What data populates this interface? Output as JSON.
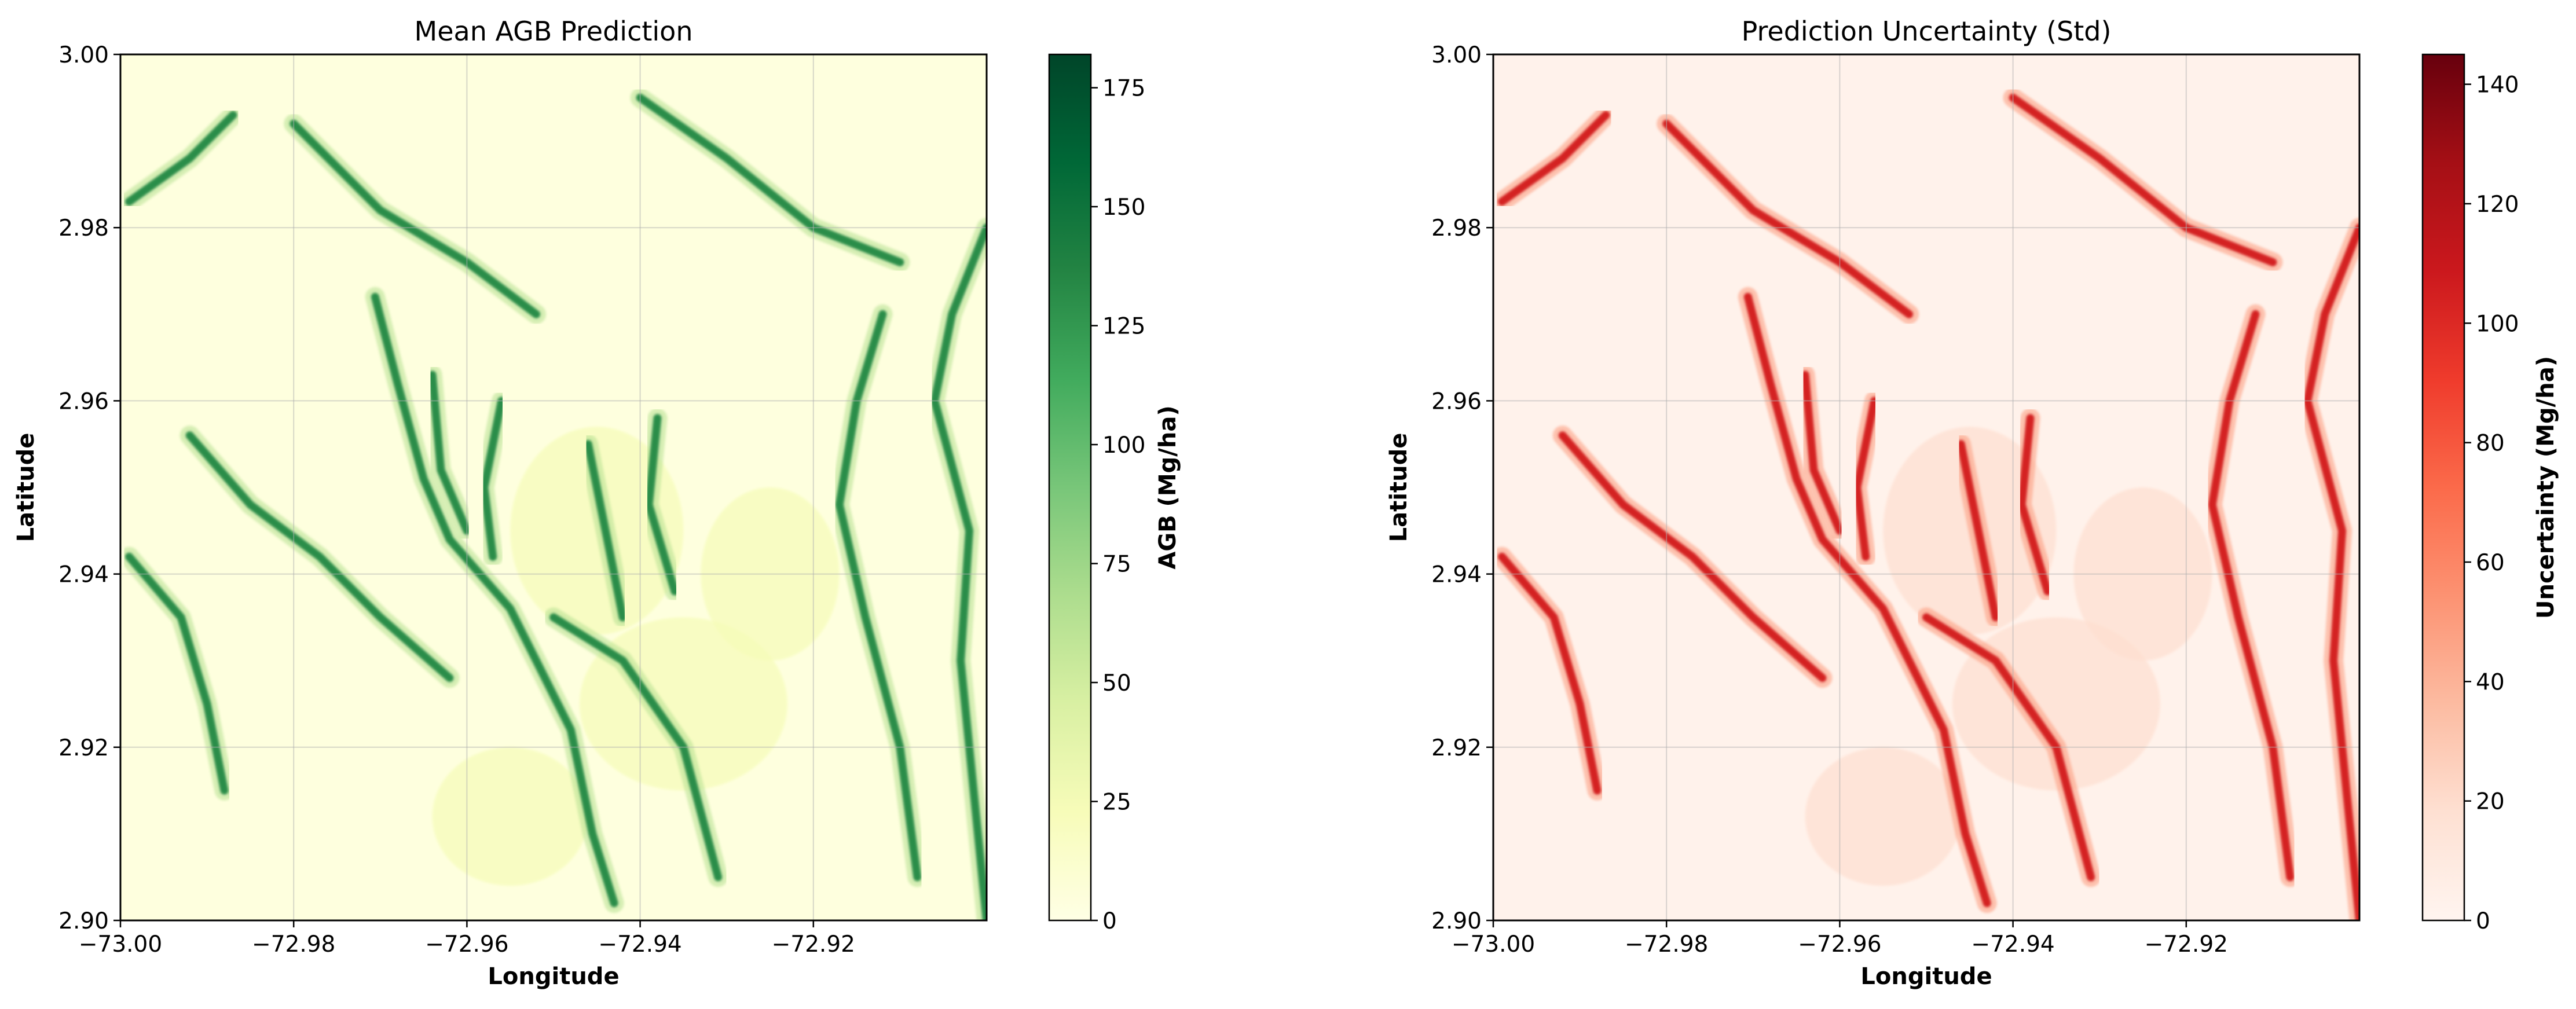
{
  "chart_data": [
    {
      "type": "heatmap",
      "title": "Mean AGB Prediction",
      "xlabel": "Longitude",
      "ylabel": "Latitude",
      "xlim": [
        -73.0,
        -72.9
      ],
      "ylim": [
        2.9,
        3.0
      ],
      "x_ticks": [
        -73.0,
        -72.98,
        -72.96,
        -72.94,
        -72.92
      ],
      "x_tick_labels": [
        "−73.00",
        "−72.98",
        "−72.96",
        "−72.94",
        "−72.92"
      ],
      "y_ticks": [
        2.9,
        2.92,
        2.94,
        2.96,
        2.98,
        3.0
      ],
      "y_tick_labels": [
        "2.90",
        "2.92",
        "2.94",
        "2.96",
        "2.98",
        "3.00"
      ],
      "grid": true,
      "colormap": "Greens",
      "colormap_colors": [
        "#ffffe5",
        "#f7fcb9",
        "#d9f0a3",
        "#addd8e",
        "#78c679",
        "#41ab5d",
        "#238443",
        "#006837",
        "#004529"
      ],
      "colorbar": {
        "label": "AGB (Mg/ha)",
        "range": [
          0,
          182
        ],
        "ticks": [
          0,
          25,
          50,
          75,
          100,
          125,
          150,
          175
        ],
        "tick_labels": [
          "0",
          "25",
          "50",
          "75",
          "100",
          "125",
          "150",
          "175"
        ]
      },
      "data_description_paths": [
        [
          [
            -72.9706,
            2.972
          ],
          [
            -72.968,
            2.962
          ],
          [
            -72.965,
            2.951
          ],
          [
            -72.962,
            2.944
          ],
          [
            -72.955,
            2.936
          ],
          [
            -72.948,
            2.922
          ],
          [
            -72.9455,
            2.91
          ],
          [
            -72.943,
            2.902
          ]
        ],
        [
          [
            -72.964,
            2.963
          ],
          [
            -72.963,
            2.952
          ],
          [
            -72.96,
            2.945
          ]
        ],
        [
          [
            -72.956,
            2.96
          ],
          [
            -72.958,
            2.95
          ],
          [
            -72.957,
            2.942
          ]
        ],
        [
          [
            -72.992,
            2.956
          ],
          [
            -72.985,
            2.948
          ],
          [
            -72.977,
            2.942
          ],
          [
            -72.97,
            2.935
          ],
          [
            -72.962,
            2.928
          ]
        ],
        [
          [
            -72.95,
            2.935
          ],
          [
            -72.942,
            2.93
          ],
          [
            -72.935,
            2.92
          ],
          [
            -72.931,
            2.905
          ]
        ],
        [
          [
            -72.946,
            2.955
          ],
          [
            -72.944,
            2.945
          ],
          [
            -72.942,
            2.935
          ]
        ],
        [
          [
            -72.938,
            2.958
          ],
          [
            -72.939,
            2.948
          ],
          [
            -72.936,
            2.938
          ]
        ],
        [
          [
            -72.912,
            2.97
          ],
          [
            -72.915,
            2.96
          ],
          [
            -72.917,
            2.948
          ],
          [
            -72.914,
            2.935
          ],
          [
            -72.91,
            2.92
          ],
          [
            -72.908,
            2.905
          ]
        ],
        [
          [
            -72.9,
            2.98
          ],
          [
            -72.904,
            2.97
          ],
          [
            -72.906,
            2.96
          ],
          [
            -72.902,
            2.945
          ],
          [
            -72.903,
            2.93
          ],
          [
            -72.901,
            2.91
          ],
          [
            -72.9,
            2.9
          ]
        ],
        [
          [
            -72.999,
            2.942
          ],
          [
            -72.993,
            2.935
          ],
          [
            -72.99,
            2.925
          ],
          [
            -72.988,
            2.915
          ]
        ],
        [
          [
            -72.98,
            2.992
          ],
          [
            -72.97,
            2.982
          ],
          [
            -72.96,
            2.976
          ],
          [
            -72.952,
            2.97
          ]
        ],
        [
          [
            -72.94,
            2.995
          ],
          [
            -72.93,
            2.988
          ],
          [
            -72.92,
            2.98
          ],
          [
            -72.91,
            2.976
          ]
        ],
        [
          [
            -72.999,
            2.983
          ],
          [
            -72.992,
            2.988
          ],
          [
            -72.987,
            2.993
          ]
        ]
      ]
    },
    {
      "type": "heatmap",
      "title": "Prediction Uncertainty (Std)",
      "xlabel": "Longitude",
      "ylabel": "Latitude",
      "xlim": [
        -73.0,
        -72.9
      ],
      "ylim": [
        2.9,
        3.0
      ],
      "x_ticks": [
        -73.0,
        -72.98,
        -72.96,
        -72.94,
        -72.92
      ],
      "x_tick_labels": [
        "−73.00",
        "−72.98",
        "−72.96",
        "−72.94",
        "−72.92"
      ],
      "y_ticks": [
        2.9,
        2.92,
        2.94,
        2.96,
        2.98,
        3.0
      ],
      "y_tick_labels": [
        "2.90",
        "2.92",
        "2.94",
        "2.96",
        "2.98",
        "3.00"
      ],
      "grid": true,
      "colormap": "Reds",
      "colormap_colors": [
        "#fff5f0",
        "#fee0d2",
        "#fcbba1",
        "#fc9272",
        "#fb6a4a",
        "#ef3b2c",
        "#cb181d",
        "#a50f15",
        "#67000d"
      ],
      "colorbar": {
        "label": "Uncertainty (Mg/ha)",
        "range": [
          0,
          145
        ],
        "ticks": [
          0,
          20,
          40,
          60,
          80,
          100,
          120,
          140
        ],
        "tick_labels": [
          "0",
          "20",
          "40",
          "60",
          "80",
          "100",
          "120",
          "140"
        ]
      }
    }
  ]
}
